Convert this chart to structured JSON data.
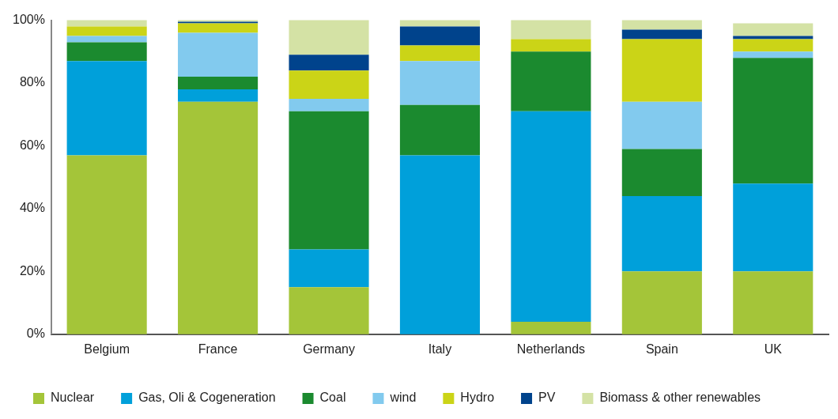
{
  "chart_data": {
    "type": "bar",
    "stacked": true,
    "categories": [
      "Belgium",
      "France",
      "Germany",
      "Italy",
      "Netherlands",
      "Spain",
      "UK"
    ],
    "series": [
      {
        "name": "Nuclear",
        "color": "#a4c539",
        "values": [
          57,
          74,
          15,
          0,
          4,
          20,
          20
        ]
      },
      {
        "name": "Gas, Oli & Cogeneration",
        "color": "#00a0da",
        "values": [
          30,
          4,
          12,
          57,
          67,
          24,
          28
        ]
      },
      {
        "name": "Coal",
        "color": "#1b8a2f",
        "values": [
          6,
          4,
          44,
          16,
          19,
          15,
          40
        ]
      },
      {
        "name": "wind",
        "color": "#82caee",
        "values": [
          2,
          14,
          4,
          14,
          0,
          15,
          2
        ]
      },
      {
        "name": "Hydro",
        "color": "#cbd417",
        "values": [
          3,
          3,
          9,
          5,
          4,
          20,
          4
        ]
      },
      {
        "name": "PV",
        "color": "#00438c",
        "values": [
          0,
          0.5,
          5,
          6,
          0,
          3,
          1
        ]
      },
      {
        "name": "Biomass & other renewables",
        "color": "#d4e2a5",
        "values": [
          2,
          0.5,
          11,
          2,
          6,
          3,
          4
        ]
      }
    ],
    "ylim": [
      0,
      100
    ],
    "yticks": [
      {
        "value": 0,
        "label": "0%"
      },
      {
        "value": 20,
        "label": "20%"
      },
      {
        "value": 40,
        "label": "40%"
      },
      {
        "value": 60,
        "label": "60%"
      },
      {
        "value": 80,
        "label": "80%"
      },
      {
        "value": 100,
        "label": "100%"
      }
    ],
    "grid": false,
    "legend": "bottom"
  }
}
